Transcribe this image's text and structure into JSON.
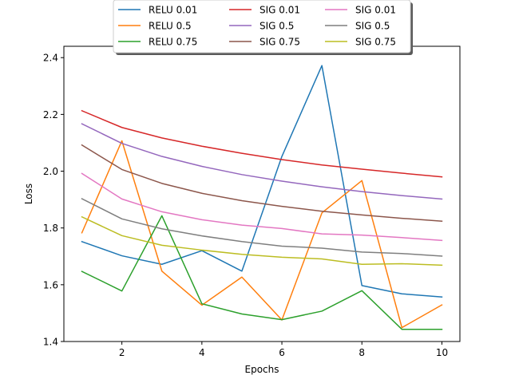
{
  "chart_data": {
    "type": "line",
    "xlabel": "Epochs",
    "ylabel": "Loss",
    "xlim": [
      0.55,
      10.45
    ],
    "ylim": [
      1.4,
      2.44
    ],
    "xticks": [
      2,
      4,
      6,
      8,
      10
    ],
    "yticks": [
      1.4,
      1.6,
      1.8,
      2.0,
      2.2,
      2.4
    ],
    "ytick_labels": [
      "1.4",
      "1.6",
      "1.8",
      "2.0",
      "2.2",
      "2.4"
    ],
    "grid": false,
    "legend_position": "top-center, outside plot, 3 columns",
    "x": [
      1,
      2,
      3,
      4,
      5,
      6,
      7,
      8,
      9,
      10
    ],
    "series": [
      {
        "name": "RELU 0.01",
        "color": "#1f77b4",
        "values": [
          1.752,
          1.702,
          1.672,
          1.72,
          1.648,
          2.052,
          2.372,
          1.597,
          1.568,
          1.557
        ]
      },
      {
        "name": "RELU 0.5",
        "color": "#ff7f0e",
        "values": [
          1.783,
          2.107,
          1.648,
          1.528,
          1.627,
          1.476,
          1.853,
          1.967,
          1.449,
          1.529
        ]
      },
      {
        "name": "RELU 0.75",
        "color": "#2ca02c",
        "values": [
          1.647,
          1.578,
          1.843,
          1.533,
          1.497,
          1.477,
          1.507,
          1.579,
          1.443,
          1.443
        ]
      },
      {
        "name": "SIG 0.01",
        "color": "#d62728",
        "values": [
          2.213,
          2.154,
          2.117,
          2.088,
          2.063,
          2.041,
          2.022,
          2.007,
          1.993,
          1.98
        ]
      },
      {
        "name": "SIG 0.5",
        "color": "#9467bd",
        "values": [
          2.167,
          2.098,
          2.052,
          2.017,
          1.988,
          1.965,
          1.945,
          1.928,
          1.914,
          1.902
        ]
      },
      {
        "name": "SIG 0.75",
        "color": "#8c564b",
        "values": [
          2.092,
          2.006,
          1.957,
          1.922,
          1.896,
          1.876,
          1.859,
          1.846,
          1.834,
          1.824
        ]
      },
      {
        "name": "SIG 0.01",
        "color": "#e377c2",
        "values": [
          1.992,
          1.902,
          1.857,
          1.829,
          1.81,
          1.798,
          1.779,
          1.775,
          1.766,
          1.756
        ]
      },
      {
        "name": "SIG 0.5",
        "color": "#7f7f7f",
        "values": [
          1.903,
          1.832,
          1.797,
          1.772,
          1.752,
          1.736,
          1.729,
          1.715,
          1.71,
          1.701
        ]
      },
      {
        "name": "SIG 0.75",
        "color": "#bcbd22",
        "values": [
          1.839,
          1.773,
          1.739,
          1.722,
          1.707,
          1.697,
          1.691,
          1.672,
          1.674,
          1.669
        ]
      }
    ]
  }
}
